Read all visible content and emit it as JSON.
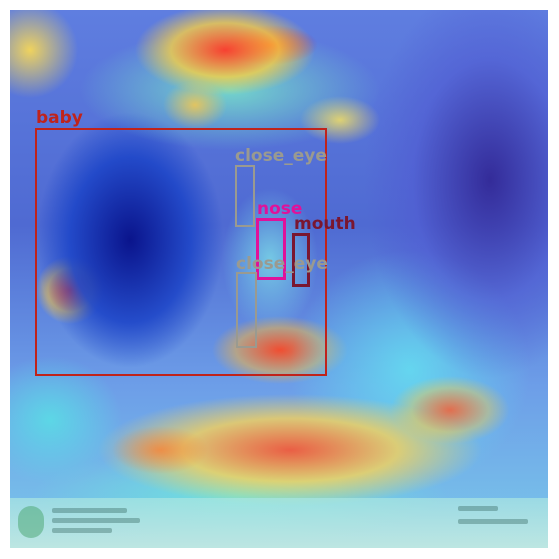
{
  "image": {
    "description_free": true,
    "overlay": "heatmap"
  },
  "detections": [
    {
      "label": "baby",
      "color": "#c0231b"
    },
    {
      "label": "close_eye",
      "color": "#9a9a90"
    },
    {
      "label": "nose",
      "color": "#e0129a"
    },
    {
      "label": "mouth",
      "color": "#7a1630"
    },
    {
      "label": "close_eye",
      "color": "#9a9a90"
    }
  ],
  "colors": {
    "heat_hot": "#e8262a",
    "heat_warm": "#ffd84a",
    "heat_cool": "#6fe0e8",
    "heat_cold": "#1a2fa8"
  }
}
